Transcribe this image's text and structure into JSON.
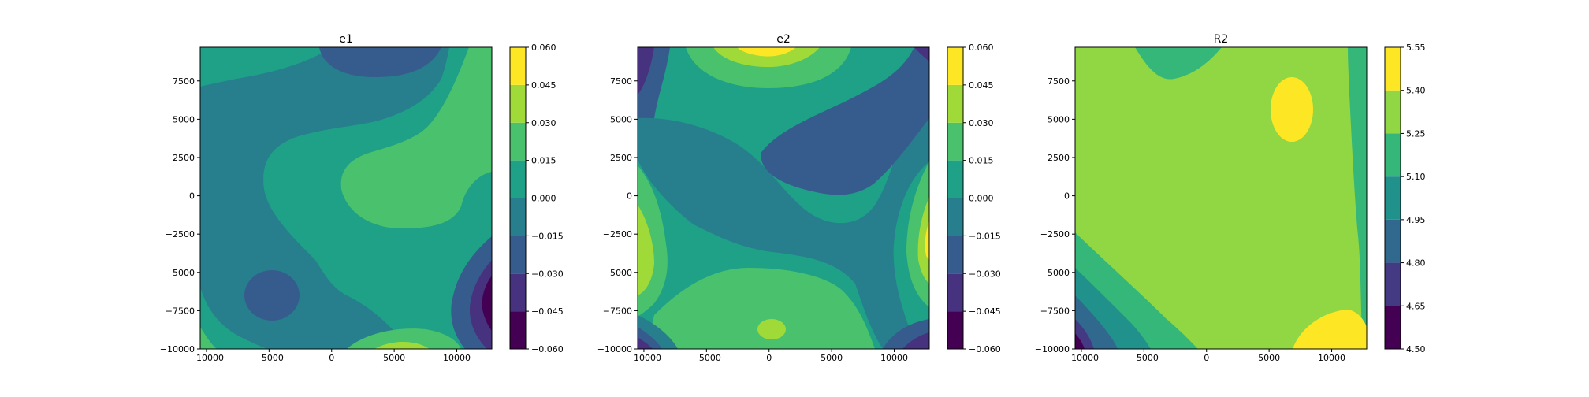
{
  "chart_data": [
    {
      "type": "contour",
      "title": "e1",
      "xlim": [
        -10500,
        12800
      ],
      "ylim": [
        -10000,
        9700
      ],
      "xticks": [
        -10000,
        -5000,
        0,
        5000,
        10000
      ],
      "xtick_labels": [
        "−10000",
        "−5000",
        "0",
        "5000",
        "10000"
      ],
      "yticks": [
        -10000,
        -7500,
        -5000,
        -2500,
        0,
        2500,
        5000,
        7500
      ],
      "ytick_labels": [
        "−10000",
        "−7500",
        "−5000",
        "−2500",
        "0",
        "2500",
        "5000",
        "7500"
      ],
      "levels": [
        -0.06,
        -0.045,
        -0.03,
        -0.015,
        0.0,
        0.015,
        0.03,
        0.045,
        0.06
      ],
      "colorbar_tick_labels": [
        "−0.060",
        "−0.045",
        "−0.030",
        "−0.015",
        "0.000",
        "0.015",
        "0.030",
        "0.045",
        "0.060"
      ],
      "level_colors": [
        "#440154",
        "#46327e",
        "#365c8d",
        "#277f8e",
        "#1fa187",
        "#4ac16d",
        "#a0da39",
        "#fde725"
      ]
    },
    {
      "type": "contour",
      "title": "e2",
      "xlim": [
        -10500,
        12800
      ],
      "ylim": [
        -10000,
        9700
      ],
      "xticks": [
        -10000,
        -5000,
        0,
        5000,
        10000
      ],
      "xtick_labels": [
        "−10000",
        "−5000",
        "0",
        "5000",
        "10000"
      ],
      "yticks": [
        -10000,
        -7500,
        -5000,
        -2500,
        0,
        2500,
        5000,
        7500
      ],
      "ytick_labels": [
        "−10000",
        "−7500",
        "−5000",
        "−2500",
        "0",
        "2500",
        "5000",
        "7500"
      ],
      "levels": [
        -0.06,
        -0.045,
        -0.03,
        -0.015,
        0.0,
        0.015,
        0.03,
        0.045,
        0.06
      ],
      "colorbar_tick_labels": [
        "−0.060",
        "−0.045",
        "−0.030",
        "−0.015",
        "0.000",
        "0.015",
        "0.030",
        "0.045",
        "0.060"
      ],
      "level_colors": [
        "#440154",
        "#46327e",
        "#365c8d",
        "#277f8e",
        "#1fa187",
        "#4ac16d",
        "#a0da39",
        "#fde725"
      ]
    },
    {
      "type": "contour",
      "title": "R2",
      "xlim": [
        -10500,
        12800
      ],
      "ylim": [
        -10000,
        9700
      ],
      "xticks": [
        -10000,
        -5000,
        0,
        5000,
        10000
      ],
      "xtick_labels": [
        "−10000",
        "−5000",
        "0",
        "5000",
        "10000"
      ],
      "yticks": [
        -10000,
        -7500,
        -5000,
        -2500,
        0,
        2500,
        5000,
        7500
      ],
      "ytick_labels": [
        "−10000",
        "−7500",
        "−5000",
        "−2500",
        "0",
        "2500",
        "5000",
        "7500"
      ],
      "levels": [
        4.5,
        4.65,
        4.8,
        4.95,
        5.1,
        5.25,
        5.4,
        5.55
      ],
      "colorbar_tick_labels": [
        "4.50",
        "4.65",
        "4.80",
        "4.95",
        "5.10",
        "5.25",
        "5.40",
        "5.55"
      ],
      "level_colors": [
        "#440154",
        "#443983",
        "#31688e",
        "#21918c",
        "#35b779",
        "#90d743",
        "#fde725"
      ]
    }
  ]
}
